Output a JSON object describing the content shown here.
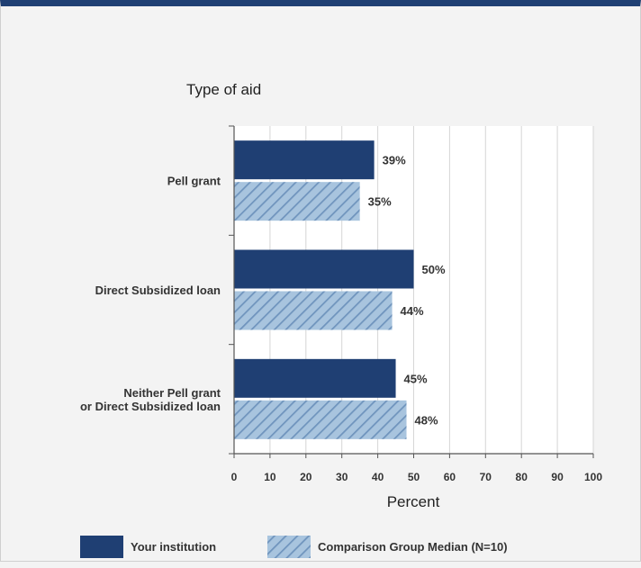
{
  "colors": {
    "institution": "#1f3f73",
    "comparison": "#a8c4de",
    "comparison_hatch": "#6f94bd",
    "plot_bg": "#ffffff",
    "frame": "#1f3f73"
  },
  "chart_data": {
    "type": "bar",
    "orientation": "horizontal",
    "categories": [
      [
        "Pell grant"
      ],
      [
        "Direct Subsidized loan"
      ],
      [
        "Neither Pell grant",
        "or Direct Subsidized loan"
      ]
    ],
    "series": [
      {
        "name": "Your institution",
        "values": [
          39,
          50,
          45
        ],
        "labels": [
          "39%",
          "50%",
          "45%"
        ]
      },
      {
        "name": "Comparison Group Median (N=10)",
        "values": [
          35,
          44,
          48
        ],
        "labels": [
          "35%",
          "44%",
          "48%"
        ]
      }
    ],
    "ylabel": "Type of aid",
    "xlabel": "Percent",
    "xlim": [
      0,
      100
    ],
    "xticks": [
      0,
      10,
      20,
      30,
      40,
      50,
      60,
      70,
      80,
      90,
      100
    ],
    "xtick_labels": [
      "0",
      "10",
      "20",
      "30",
      "40",
      "50",
      "60",
      "70",
      "80",
      "90",
      "100"
    ],
    "grid": true,
    "legend": "bottom"
  }
}
